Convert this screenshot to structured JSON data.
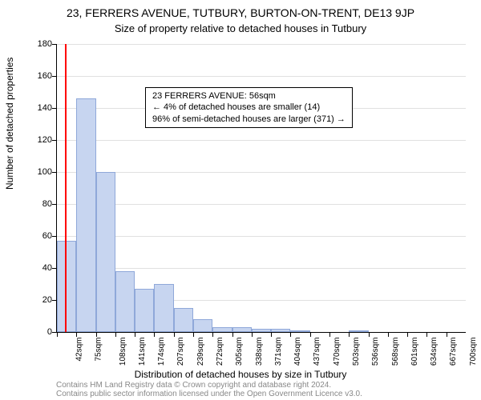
{
  "title1": "23, FERRERS AVENUE, TUTBURY, BURTON-ON-TRENT, DE13 9JP",
  "title2": "Size of property relative to detached houses in Tutbury",
  "y_axis_title": "Number of detached properties",
  "x_axis_title": "Distribution of detached houses by size in Tutbury",
  "annotation": {
    "line1": "23 FERRERS AVENUE: 56sqm",
    "line2": "← 4% of detached houses are smaller (14)",
    "line3": "96% of semi-detached houses are larger (371) →"
  },
  "footer": {
    "line1": "Contains HM Land Registry data © Crown copyright and database right 2024.",
    "line2": "Contains public sector information licensed under the Open Government Licence v3.0."
  },
  "chart": {
    "type": "histogram",
    "background_color": "#ffffff",
    "grid_color": "#e0e0e0",
    "bar_fill": "#c7d5f0",
    "bar_stroke": "#8fa8d9",
    "marker_color": "#ff0000",
    "ylim": [
      0,
      180
    ],
    "ytick_step": 20,
    "x_categories": [
      "42sqm",
      "75sqm",
      "108sqm",
      "141sqm",
      "174sqm",
      "207sqm",
      "239sqm",
      "272sqm",
      "305sqm",
      "338sqm",
      "371sqm",
      "404sqm",
      "437sqm",
      "470sqm",
      "503sqm",
      "536sqm",
      "568sqm",
      "601sqm",
      "634sqm",
      "667sqm",
      "700sqm"
    ],
    "values": [
      57,
      146,
      100,
      38,
      27,
      30,
      15,
      8,
      3,
      3,
      2,
      2,
      1,
      0,
      0,
      1,
      0,
      0,
      0,
      0,
      0
    ],
    "marker_x_index": 0.42,
    "marker_height": 180,
    "title_fontsize": 14,
    "subtitle_fontsize": 13,
    "axis_label_fontsize": 12,
    "tick_fontsize": 11
  }
}
